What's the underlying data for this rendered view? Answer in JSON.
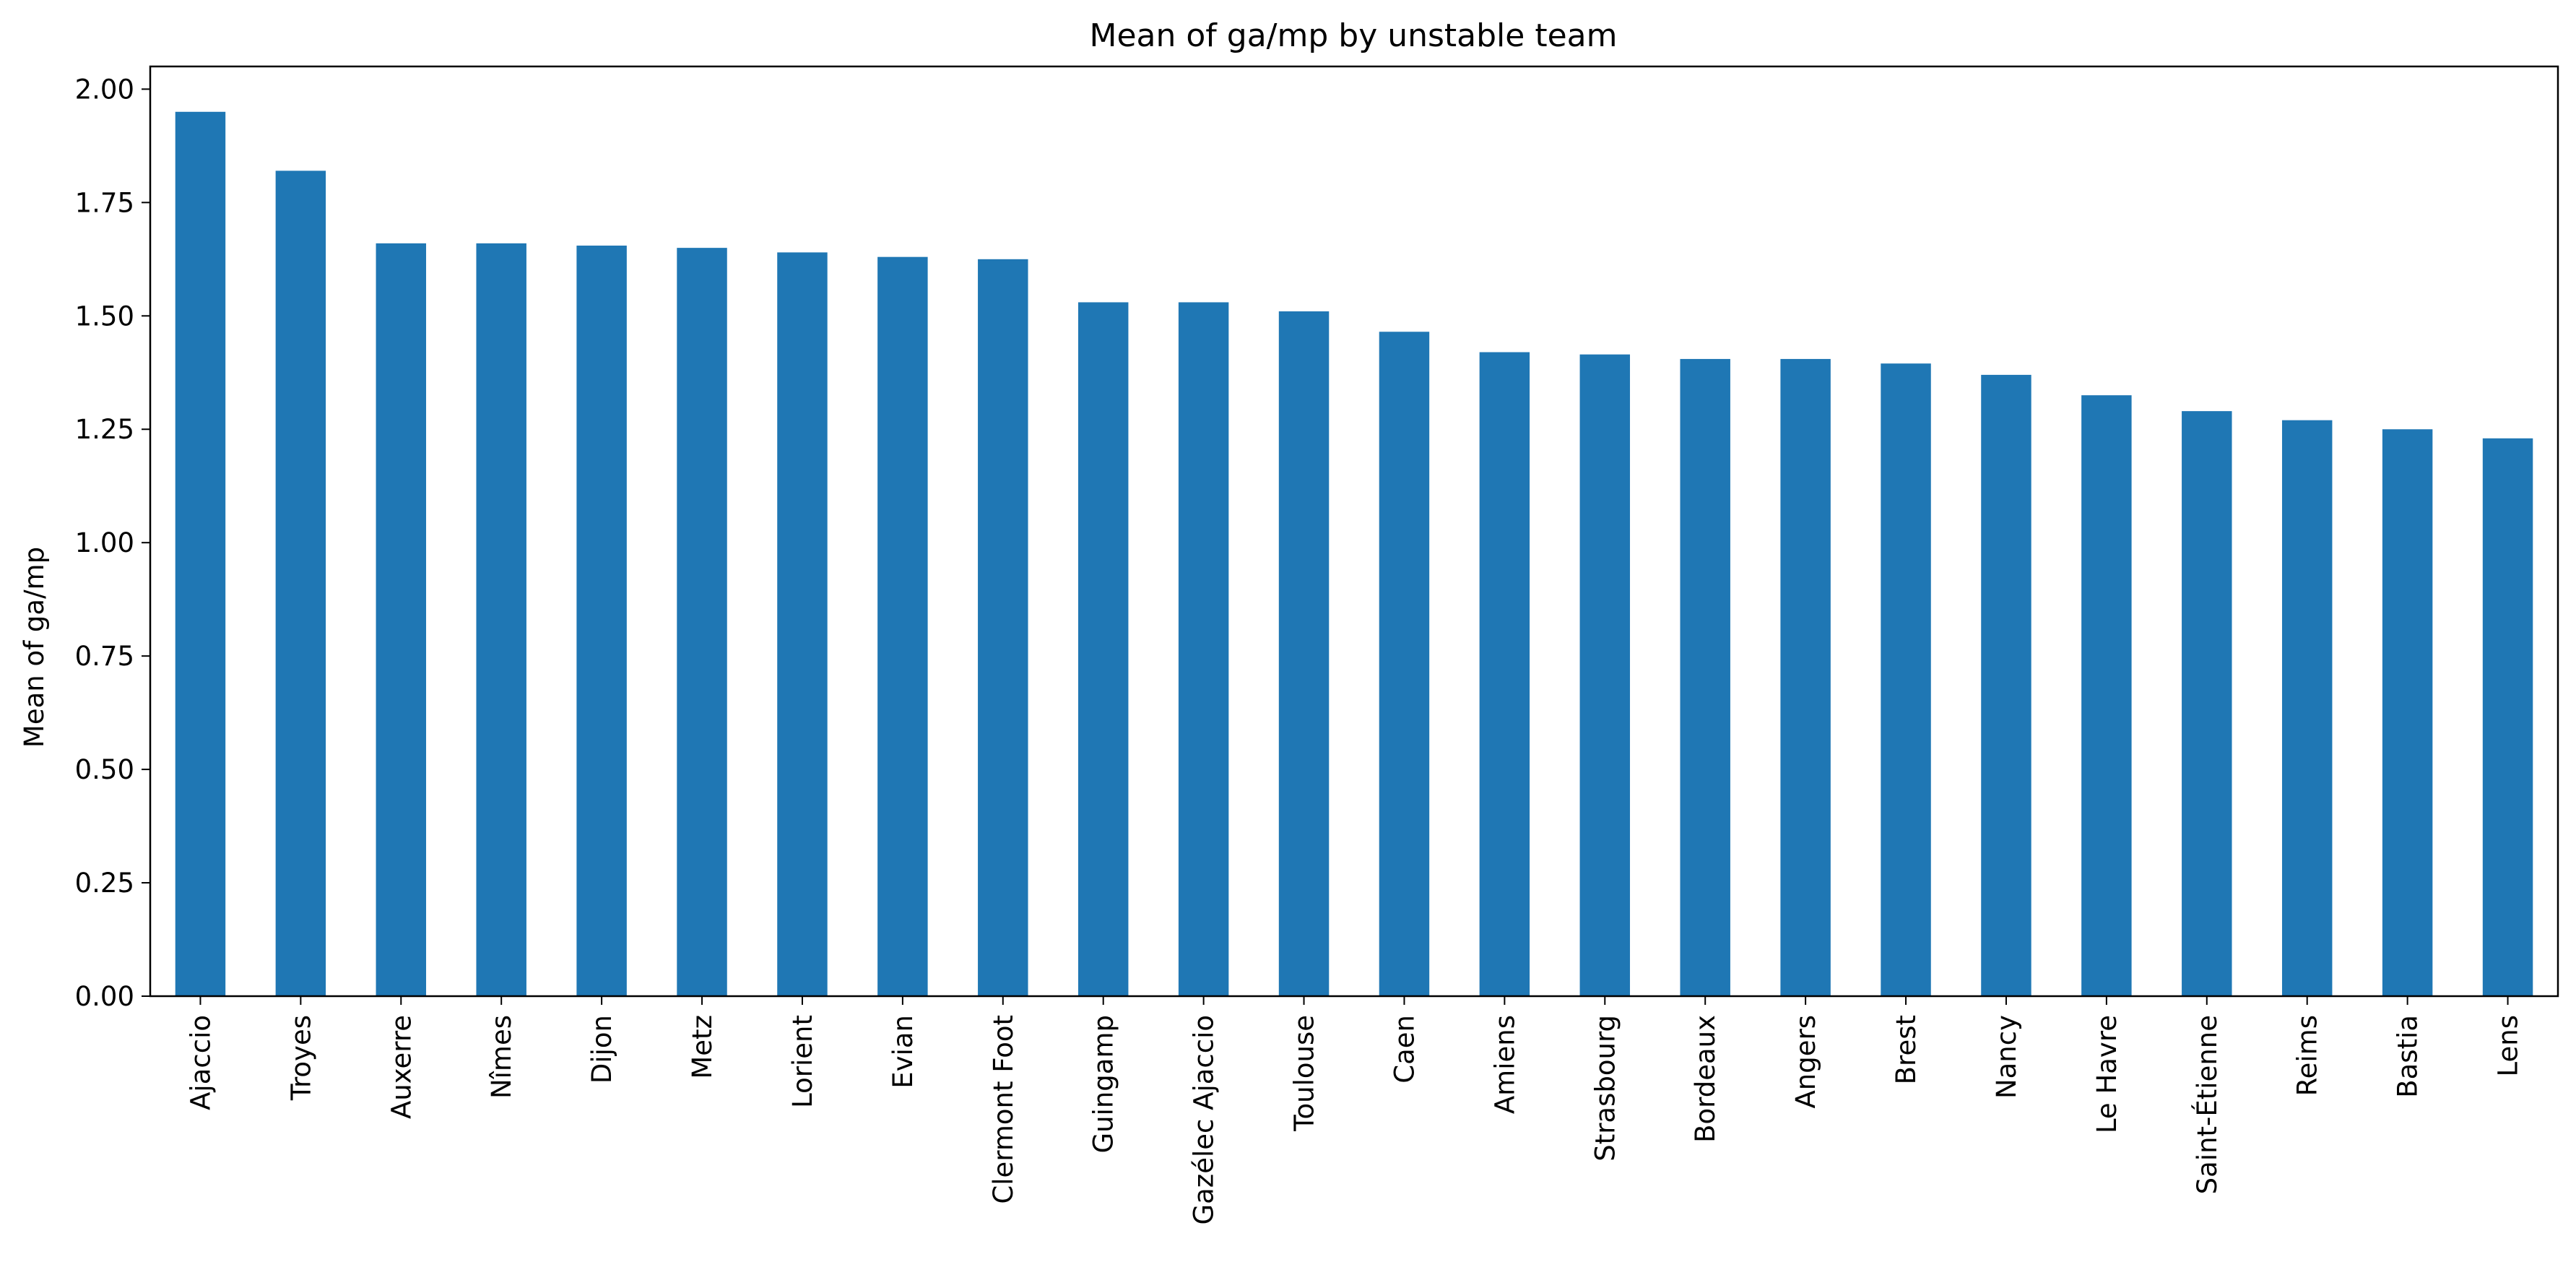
{
  "chart_data": {
    "type": "bar",
    "title": "Mean of ga/mp by unstable team",
    "xlabel": "",
    "ylabel": "Mean of ga/mp",
    "ylim": [
      0,
      2.05
    ],
    "yticks": [
      "0.00",
      "0.25",
      "0.50",
      "0.75",
      "1.00",
      "1.25",
      "1.50",
      "1.75",
      "2.00"
    ],
    "grid": false,
    "bar_color": "#1f77b4",
    "categories": [
      "Ajaccio",
      "Troyes",
      "Auxerre",
      "Nîmes",
      "Dijon",
      "Metz",
      "Lorient",
      "Evian",
      "Clermont Foot",
      "Guingamp",
      "Gazélec Ajaccio",
      "Toulouse",
      "Caen",
      "Amiens",
      "Strasbourg",
      "Bordeaux",
      "Angers",
      "Brest",
      "Nancy",
      "Le Havre",
      "Saint-Étienne",
      "Reims",
      "Bastia",
      "Lens"
    ],
    "values": [
      1.95,
      1.82,
      1.66,
      1.66,
      1.655,
      1.65,
      1.64,
      1.63,
      1.625,
      1.53,
      1.53,
      1.51,
      1.465,
      1.42,
      1.415,
      1.405,
      1.405,
      1.395,
      1.37,
      1.325,
      1.29,
      1.27,
      1.25,
      1.23
    ]
  }
}
